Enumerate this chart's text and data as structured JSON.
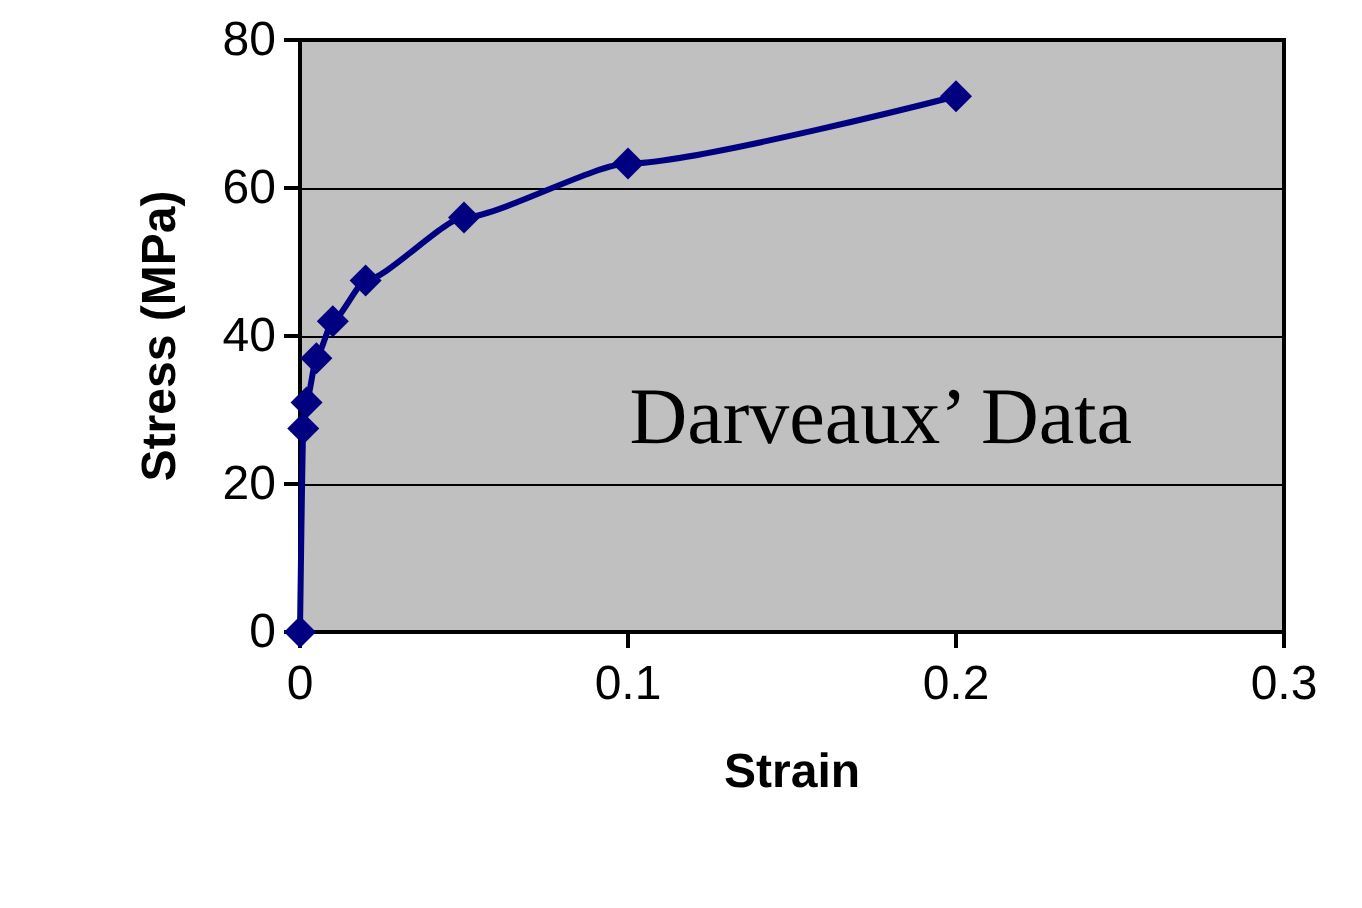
{
  "chart_data": {
    "type": "line",
    "xlabel": "Strain",
    "ylabel": "Stress (MPa)",
    "annotations": [
      "Darveaux’ Data"
    ],
    "series": [
      {
        "color": "#000080",
        "x": [
          0,
          0.001,
          0.002,
          0.005,
          0.01,
          0.02,
          0.05,
          0.1,
          0.2
        ],
        "values": [
          0,
          27.5,
          31,
          37,
          42,
          47.5,
          56,
          63.3,
          72.4
        ]
      }
    ],
    "xlim": [
      0,
      0.3
    ],
    "xticks": [
      0,
      0.1,
      0.2,
      0.3
    ],
    "ylim": [
      0,
      80
    ],
    "yticks": [
      0,
      20,
      40,
      60,
      80
    ],
    "grid": "y",
    "marker": "diamond",
    "line_style": "solid"
  }
}
